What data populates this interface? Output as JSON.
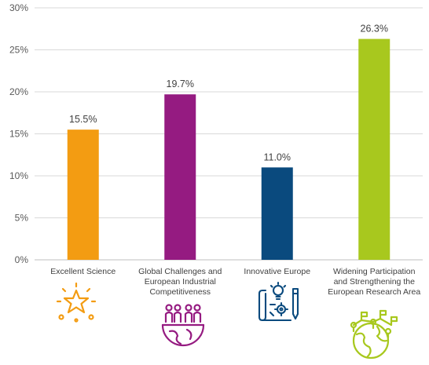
{
  "chart_data": {
    "type": "bar",
    "categories": [
      "Excellent Science",
      "Global Challenges and European Industrial Competitiveness",
      "Innovative Europe",
      "Widening Participation and Strengthening the European Research Area"
    ],
    "values": [
      15.5,
      19.7,
      11.0,
      26.3
    ],
    "data_labels": [
      "15.5%",
      "19.7%",
      "11.0%",
      "26.3%"
    ],
    "bar_colors": [
      "#F39C12",
      "#951B81",
      "#0A4A7E",
      "#A8C81E"
    ],
    "yticks": [
      "0%",
      "5%",
      "10%",
      "15%",
      "20%",
      "25%",
      "30%"
    ],
    "ytick_values": [
      0,
      5,
      10,
      15,
      20,
      25,
      30
    ],
    "ylim": [
      0,
      30
    ],
    "grid": true,
    "title": "",
    "xlabel": "",
    "ylabel": "",
    "category_icons": [
      "star-burst-icon",
      "people-globe-icon",
      "blueprint-innovation-icon",
      "globe-network-icon"
    ]
  }
}
